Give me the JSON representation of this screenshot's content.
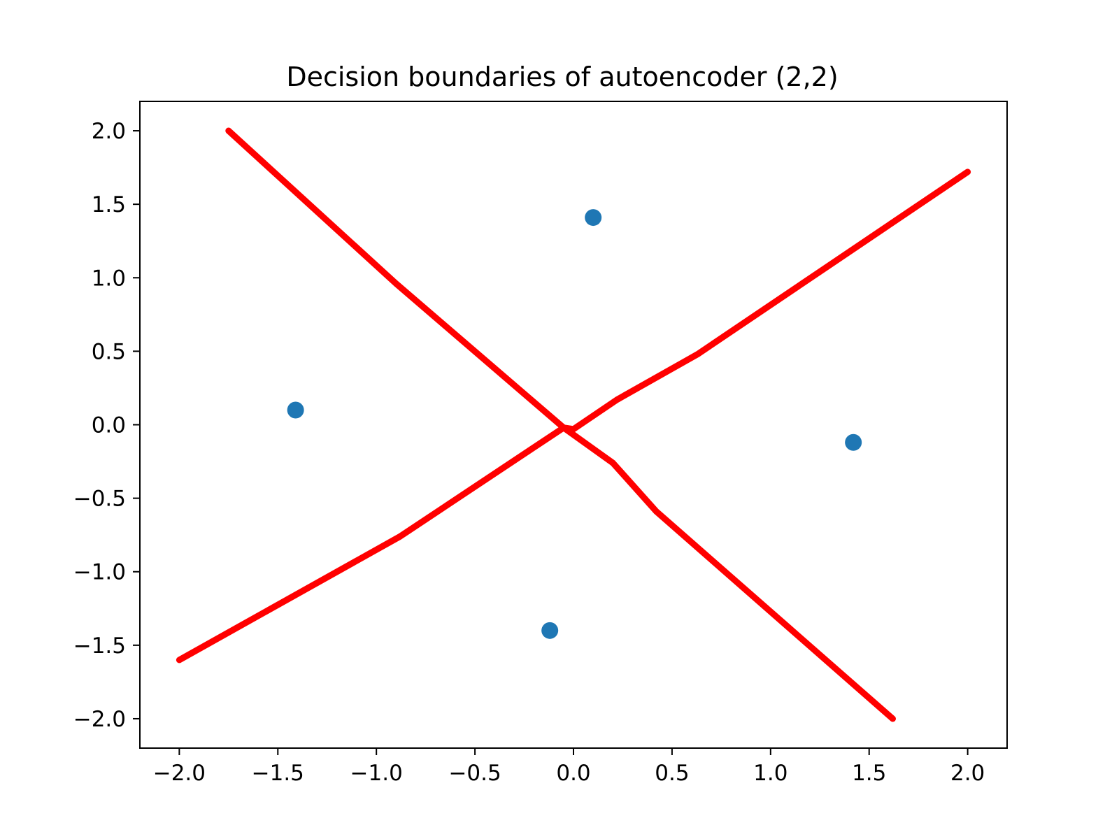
{
  "chart_data": {
    "type": "scatter",
    "title": "Decision boundaries of autoencoder (2,2)",
    "xlabel": "",
    "ylabel": "",
    "xlim": [
      -2.2,
      2.2
    ],
    "ylim": [
      -2.2,
      2.2
    ],
    "xticks": [
      -2.0,
      -1.5,
      -1.0,
      -0.5,
      0.0,
      0.5,
      1.0,
      1.5,
      2.0
    ],
    "yticks": [
      -2.0,
      -1.5,
      -1.0,
      -0.5,
      0.0,
      0.5,
      1.0,
      1.5,
      2.0
    ],
    "xtick_labels": [
      "−2.0",
      "−1.5",
      "−1.0",
      "−0.5",
      "0.0",
      "0.5",
      "1.0",
      "1.5",
      "2.0"
    ],
    "ytick_labels": [
      "−2.0",
      "−1.5",
      "−1.0",
      "−0.5",
      "0.0",
      "0.5",
      "1.0",
      "1.5",
      "2.0"
    ],
    "grid": false,
    "series": [
      {
        "kind": "scatter",
        "color": "#1f77b4",
        "points": [
          {
            "x": 0.1,
            "y": 1.41
          },
          {
            "x": -1.41,
            "y": 0.1
          },
          {
            "x": 1.42,
            "y": -0.12
          },
          {
            "x": -0.12,
            "y": -1.4
          }
        ]
      },
      {
        "kind": "line",
        "color": "#ff0000",
        "points": [
          {
            "x": -1.75,
            "y": 2.0
          },
          {
            "x": -0.9,
            "y": 0.96
          },
          {
            "x": -0.05,
            "y": -0.02
          },
          {
            "x": 0.2,
            "y": -0.26
          },
          {
            "x": 0.42,
            "y": -0.59
          },
          {
            "x": 1.62,
            "y": -2.0
          }
        ]
      },
      {
        "kind": "line",
        "color": "#ff0000",
        "points": [
          {
            "x": -2.0,
            "y": -1.6
          },
          {
            "x": -0.88,
            "y": -0.76
          },
          {
            "x": -0.05,
            "y": -0.02
          },
          {
            "x": 0.0,
            "y": -0.03
          },
          {
            "x": 0.22,
            "y": 0.17
          },
          {
            "x": 0.63,
            "y": 0.48
          },
          {
            "x": 2.0,
            "y": 1.72
          }
        ]
      }
    ]
  }
}
